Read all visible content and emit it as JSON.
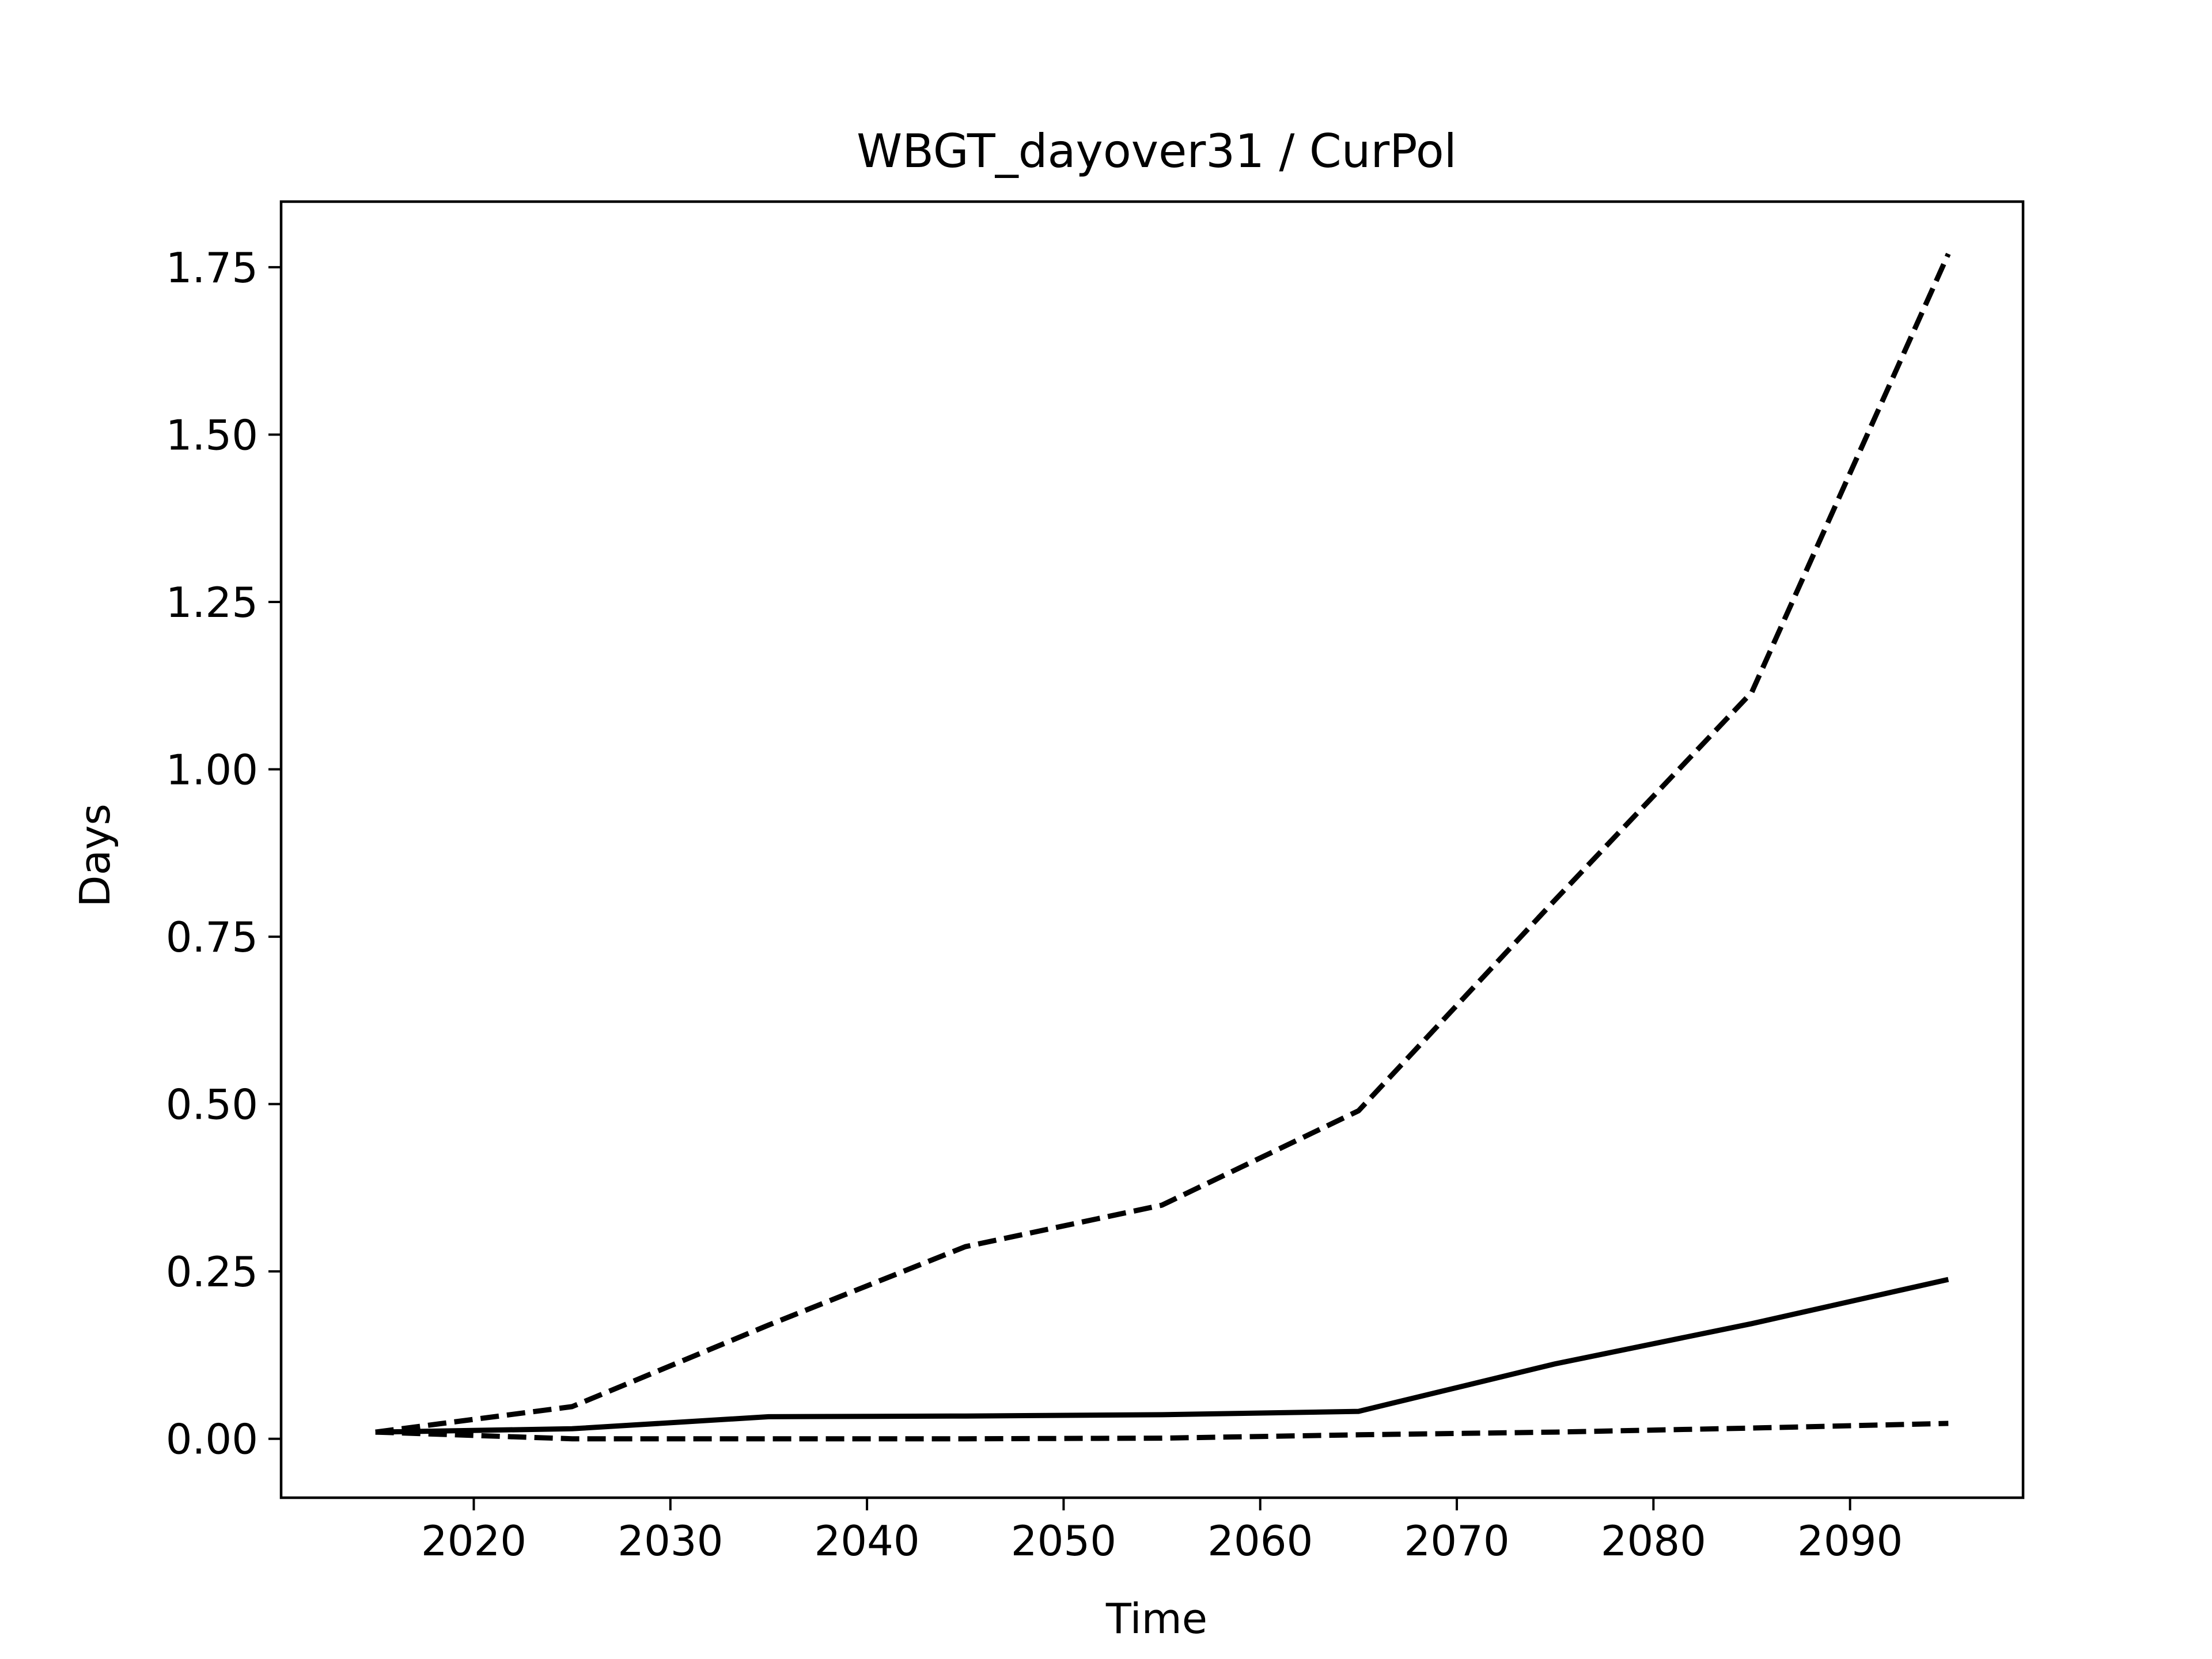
{
  "chart_data": {
    "type": "line",
    "title": "WBGT_dayover31 / CurPol",
    "xlabel": "Time",
    "ylabel": "Days",
    "xlim": [
      2010.2,
      2098.8
    ],
    "ylim": [
      -0.088,
      1.848
    ],
    "grid": false,
    "x_ticks": [
      2020,
      2030,
      2040,
      2050,
      2060,
      2070,
      2080,
      2090
    ],
    "x_tick_labels": [
      "2020",
      "2030",
      "2040",
      "2050",
      "2060",
      "2070",
      "2080",
      "2090"
    ],
    "y_ticks": [
      0.0,
      0.25,
      0.5,
      0.75,
      1.0,
      1.25,
      1.5,
      1.75
    ],
    "y_tick_labels": [
      "0.00",
      "0.25",
      "0.50",
      "0.75",
      "1.00",
      "1.25",
      "1.50",
      "1.75"
    ],
    "series": [
      {
        "style": "solid",
        "color": "#000000",
        "x": [
          2015,
          2025,
          2035,
          2045,
          2055,
          2065,
          2075,
          2085,
          2095
        ],
        "y": [
          0.01,
          0.015,
          0.033,
          0.034,
          0.036,
          0.041,
          0.112,
          0.172,
          0.238
        ]
      },
      {
        "style": "dashed",
        "color": "#000000",
        "x": [
          2015,
          2025,
          2035,
          2045,
          2055,
          2065,
          2075,
          2085,
          2095
        ],
        "y": [
          0.01,
          0.048,
          0.17,
          0.287,
          0.349,
          0.49,
          0.805,
          1.115,
          1.77
        ]
      },
      {
        "style": "dashed",
        "color": "#000000",
        "x": [
          2015,
          2025,
          2035,
          2045,
          2055,
          2065,
          2075,
          2085,
          2095
        ],
        "y": [
          0.01,
          0.0,
          0.0,
          0.0,
          0.001,
          0.006,
          0.01,
          0.016,
          0.023
        ]
      }
    ]
  }
}
